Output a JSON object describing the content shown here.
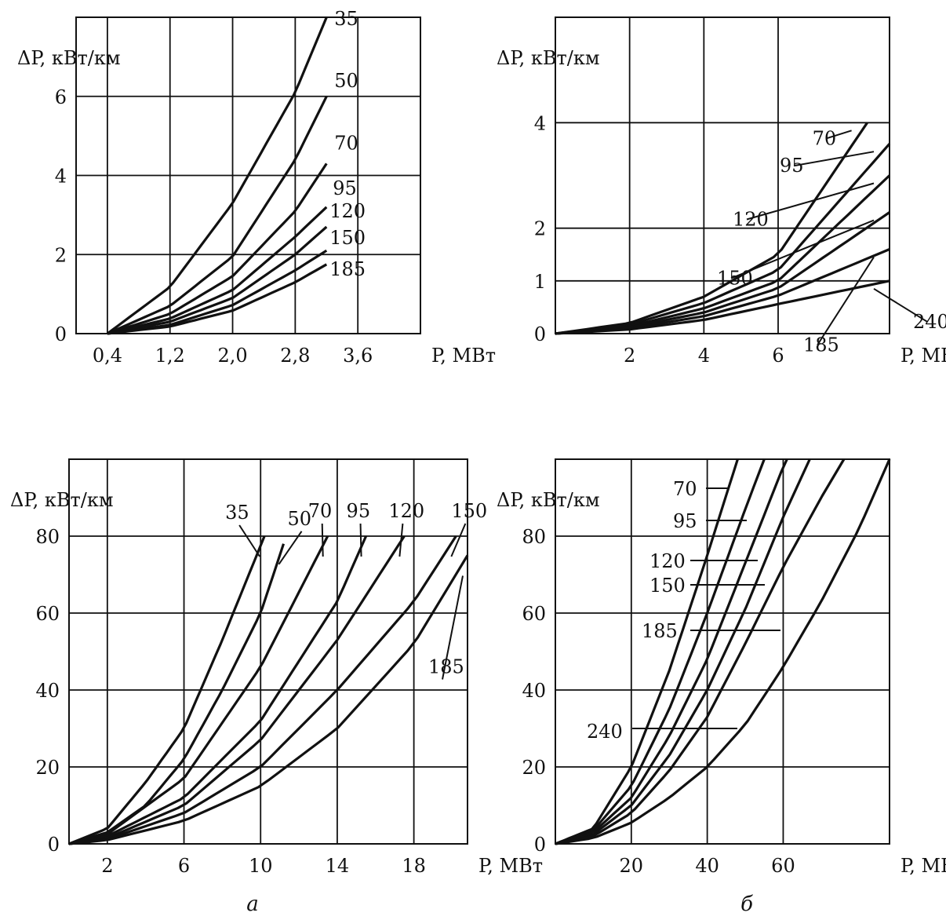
{
  "chart_data": [
    {
      "type": "line",
      "ylabel": "ΔP, кВт/км",
      "xlabel": "P, МВт",
      "xlim": [
        0,
        4.4
      ],
      "ylim": [
        0,
        8
      ],
      "grid": true,
      "xticks": [
        {
          "v": 0.4,
          "label": "0,4"
        },
        {
          "v": 1.2,
          "label": "1,2"
        },
        {
          "v": 2.0,
          "label": "2,0"
        },
        {
          "v": 2.8,
          "label": "2,8"
        },
        {
          "v": 3.6,
          "label": "3,6"
        }
      ],
      "yticks": [
        {
          "v": 0,
          "label": "0"
        },
        {
          "v": 2,
          "label": "2"
        },
        {
          "v": 4,
          "label": "4"
        },
        {
          "v": 6,
          "label": "6"
        }
      ],
      "series": [
        {
          "name": "35",
          "x": [
            0.4,
            1.2,
            2.0,
            2.8,
            3.2
          ],
          "y": [
            0,
            1.18,
            3.3,
            6.1,
            8.0
          ]
        },
        {
          "name": "50",
          "x": [
            0.4,
            1.2,
            2.0,
            2.8,
            3.2
          ],
          "y": [
            0,
            0.7,
            1.95,
            4.4,
            6.0
          ]
        },
        {
          "name": "70",
          "x": [
            0.4,
            1.2,
            2.0,
            2.8,
            3.2
          ],
          "y": [
            0,
            0.5,
            1.45,
            3.1,
            4.3
          ]
        },
        {
          "name": "95",
          "x": [
            0.4,
            1.2,
            2.0,
            2.8,
            3.2
          ],
          "y": [
            0,
            0.38,
            1.1,
            2.45,
            3.2
          ]
        },
        {
          "name": "120",
          "x": [
            0.4,
            1.2,
            2.0,
            2.8,
            3.2
          ],
          "y": [
            0,
            0.3,
            0.9,
            2.0,
            2.7
          ]
        },
        {
          "name": "150",
          "x": [
            0.4,
            1.2,
            2.0,
            2.8,
            3.2
          ],
          "y": [
            0,
            0.22,
            0.72,
            1.6,
            2.1
          ]
        },
        {
          "name": "185",
          "x": [
            0.4,
            1.2,
            2.0,
            2.8,
            3.2
          ],
          "y": [
            0,
            0.18,
            0.58,
            1.3,
            1.75
          ]
        }
      ]
    },
    {
      "type": "line",
      "ylabel": "ΔP, кВт/км",
      "xlabel": "P, МВт",
      "xlim": [
        0,
        9
      ],
      "ylim": [
        0,
        6
      ],
      "grid": true,
      "xticks": [
        {
          "v": 2,
          "label": "2"
        },
        {
          "v": 4,
          "label": "4"
        },
        {
          "v": 6,
          "label": "6"
        }
      ],
      "yticks": [
        {
          "v": 0,
          "label": "0"
        },
        {
          "v": 1,
          "label": "1"
        },
        {
          "v": 2,
          "label": "2"
        },
        {
          "v": 4,
          "label": "4"
        }
      ],
      "series": [
        {
          "name": "70",
          "x": [
            0,
            2,
            4,
            6,
            8.4
          ],
          "y": [
            0,
            0.2,
            0.7,
            1.5,
            4.0
          ]
        },
        {
          "name": "95",
          "x": [
            0,
            2,
            4,
            6,
            9
          ],
          "y": [
            0,
            0.17,
            0.58,
            1.2,
            3.6
          ]
        },
        {
          "name": "120",
          "x": [
            0,
            2,
            4,
            6,
            9
          ],
          "y": [
            0,
            0.14,
            0.48,
            1.0,
            3.0
          ]
        },
        {
          "name": "150",
          "x": [
            0,
            2,
            4,
            6,
            9
          ],
          "y": [
            0,
            0.12,
            0.4,
            0.86,
            2.3
          ]
        },
        {
          "name": "185",
          "x": [
            0,
            2,
            4,
            6,
            9
          ],
          "y": [
            0,
            0.1,
            0.33,
            0.72,
            1.6
          ]
        },
        {
          "name": "240",
          "x": [
            0,
            2,
            4,
            6,
            9
          ],
          "y": [
            0,
            0.08,
            0.26,
            0.56,
            1.0
          ]
        }
      ]
    },
    {
      "type": "line",
      "ylabel": "ΔP, кВт/км",
      "xlabel": "P, МВт",
      "xlim": [
        0,
        20.8
      ],
      "ylim": [
        0,
        100
      ],
      "grid": true,
      "xticks": [
        {
          "v": 2,
          "label": "2"
        },
        {
          "v": 6,
          "label": "6"
        },
        {
          "v": 10,
          "label": "10"
        },
        {
          "v": 14,
          "label": "14"
        },
        {
          "v": 18,
          "label": "18"
        }
      ],
      "yticks": [
        {
          "v": 0,
          "label": "0"
        },
        {
          "v": 20,
          "label": "20"
        },
        {
          "v": 40,
          "label": "40"
        },
        {
          "v": 60,
          "label": "60"
        },
        {
          "v": 80,
          "label": "80"
        }
      ],
      "series": [
        {
          "name": "35",
          "x": [
            0,
            2,
            4,
            6,
            8,
            10.2
          ],
          "y": [
            0,
            4,
            16,
            30,
            53,
            80
          ]
        },
        {
          "name": "50",
          "x": [
            0,
            2,
            4,
            6,
            8,
            10,
            11.2
          ],
          "y": [
            0,
            3,
            10,
            22,
            40,
            60,
            78
          ]
        },
        {
          "name": "70",
          "x": [
            0,
            2,
            6,
            10,
            13.5
          ],
          "y": [
            0,
            2.5,
            17,
            46,
            80
          ]
        },
        {
          "name": "95",
          "x": [
            0,
            2,
            6,
            10,
            14,
            15.5
          ],
          "y": [
            0,
            2,
            12,
            32,
            63,
            80
          ]
        },
        {
          "name": "120",
          "x": [
            0,
            2,
            6,
            10,
            14,
            17.5
          ],
          "y": [
            0,
            1.5,
            10,
            27,
            53,
            80
          ]
        },
        {
          "name": "150",
          "x": [
            0,
            2,
            6,
            10,
            14,
            18,
            20.2
          ],
          "y": [
            0,
            1.2,
            8,
            20,
            40,
            63,
            80
          ]
        },
        {
          "name": "185",
          "x": [
            0,
            2,
            6,
            10,
            14,
            18,
            20.8
          ],
          "y": [
            0,
            1,
            6,
            15,
            30,
            52,
            75
          ]
        }
      ]
    },
    {
      "type": "line",
      "ylabel": "ΔP, кВт/км",
      "xlabel": "P, МВт",
      "xlim": [
        0,
        88
      ],
      "ylim": [
        0,
        100
      ],
      "grid": true,
      "xticks": [
        {
          "v": 20,
          "label": "20"
        },
        {
          "v": 40,
          "label": "40"
        },
        {
          "v": 60,
          "label": "60"
        }
      ],
      "yticks": [
        {
          "v": 0,
          "label": "0"
        },
        {
          "v": 20,
          "label": "20"
        },
        {
          "v": 40,
          "label": "40"
        },
        {
          "v": 60,
          "label": "60"
        },
        {
          "v": 80,
          "label": "80"
        }
      ],
      "series": [
        {
          "name": "70",
          "x": [
            0,
            10,
            20,
            30,
            40,
            48
          ],
          "y": [
            0,
            4,
            20,
            45,
            75,
            100
          ]
        },
        {
          "name": "95",
          "x": [
            0,
            10,
            20,
            30,
            40,
            50,
            55
          ],
          "y": [
            0,
            3.5,
            15,
            35,
            60,
            87,
            100
          ]
        },
        {
          "name": "120",
          "x": [
            0,
            10,
            20,
            30,
            40,
            50,
            60,
            61
          ],
          "y": [
            0,
            3,
            12,
            28,
            48,
            73,
            98,
            100
          ]
        },
        {
          "name": "150",
          "x": [
            0,
            10,
            20,
            30,
            40,
            50,
            60,
            67
          ],
          "y": [
            0,
            2.5,
            10,
            23,
            40,
            61,
            85,
            100
          ]
        },
        {
          "name": "185",
          "x": [
            0,
            10,
            20,
            30,
            40,
            50,
            60,
            70,
            76
          ],
          "y": [
            0,
            2,
            8,
            19,
            33,
            52,
            72,
            90,
            100
          ]
        },
        {
          "name": "240",
          "x": [
            0,
            10,
            20,
            30,
            40,
            50,
            60,
            70,
            80,
            88
          ],
          "y": [
            0,
            1.5,
            5.5,
            12,
            20,
            31,
            46,
            63,
            82,
            100
          ]
        }
      ]
    }
  ],
  "subcaptions": {
    "a": "а",
    "b": "б"
  }
}
